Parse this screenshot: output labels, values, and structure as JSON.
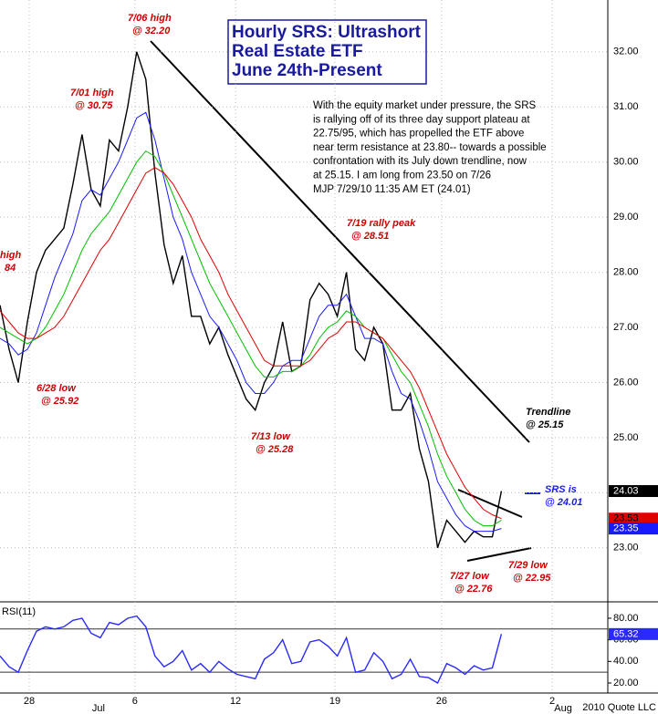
{
  "chart_data": [
    {
      "type": "line",
      "title": [
        "Hourly SRS: Ultrashort",
        "Real Estate ETF",
        "June 24th-Present"
      ],
      "commentary": [
        "With the equity market under pressure, the SRS",
        "is rallying off of its three day support plateau at",
        "22.75/95, which has propelled the ETF above",
        "near term resistance at 23.80-- towards a possible",
        "confrontation with its July down trendline, now",
        "at 25.15. I am long from 23.50 on 7/26",
        "MJP  7/29/10   11:35 AM ET (24.01)"
      ],
      "x": [
        0,
        3,
        6,
        9,
        12,
        15,
        18,
        21,
        24,
        27,
        30,
        33,
        36,
        39,
        42,
        45,
        48,
        51,
        54,
        57,
        60,
        63,
        66,
        69,
        72,
        75,
        78,
        81,
        84,
        87,
        90,
        93,
        96,
        99,
        102,
        105,
        108,
        111,
        114,
        117,
        120,
        123,
        126,
        129,
        132,
        135,
        138,
        141,
        144,
        147,
        150,
        153,
        156,
        159,
        162,
        165
      ],
      "xlim": [
        0,
        200
      ],
      "xticks": [
        {
          "value": 9.6,
          "label": "28"
        },
        {
          "value": 44.4,
          "label": "6"
        },
        {
          "value": 77.5,
          "label": "12"
        },
        {
          "value": 110.2,
          "label": "19"
        },
        {
          "value": 145.3,
          "label": "26"
        },
        {
          "value": 181.7,
          "label": "2"
        }
      ],
      "month_ticks": [
        {
          "value": 32.4,
          "label": "Jul"
        },
        {
          "value": 185.3,
          "label": "Aug"
        }
      ],
      "ylim": [
        22.02,
        32.94
      ],
      "yticks": [
        {
          "value": 23,
          "label": "23.00"
        },
        {
          "value": 24,
          "label": "24.00"
        },
        {
          "value": 25,
          "label": "25.00"
        },
        {
          "value": 26,
          "label": "26.00"
        },
        {
          "value": 27,
          "label": "27.00"
        },
        {
          "value": 28,
          "label": "28.00"
        },
        {
          "value": 29,
          "label": "29.00"
        },
        {
          "value": 30,
          "label": "30.00"
        },
        {
          "value": 31,
          "label": "31.00"
        },
        {
          "value": 32,
          "label": "32.00"
        }
      ],
      "grid": true,
      "series": [
        {
          "color": "#000000",
          "values": [
            27.4,
            26.6,
            26.0,
            27.1,
            28.0,
            28.4,
            28.6,
            28.8,
            29.6,
            30.5,
            29.5,
            29.2,
            30.4,
            30.2,
            31.0,
            32.0,
            31.5,
            29.8,
            28.5,
            27.8,
            28.3,
            27.2,
            27.2,
            26.7,
            27.0,
            26.5,
            26.1,
            25.7,
            25.5,
            26.0,
            26.3,
            27.1,
            26.2,
            26.3,
            27.5,
            27.8,
            27.6,
            27.2,
            28.0,
            26.6,
            26.4,
            27.0,
            26.7,
            25.5,
            25.5,
            25.8,
            24.8,
            24.2,
            23.0,
            23.5,
            23.3,
            23.1,
            23.3,
            23.2,
            23.2,
            24.03
          ]
        },
        {
          "color": "#1a1aff",
          "values": [
            26.8,
            26.7,
            26.5,
            26.6,
            26.9,
            27.4,
            27.9,
            28.3,
            28.7,
            29.3,
            29.5,
            29.4,
            29.7,
            30.0,
            30.4,
            30.8,
            30.9,
            30.4,
            29.7,
            29.0,
            28.6,
            28.0,
            27.6,
            27.2,
            27.0,
            26.7,
            26.4,
            26.0,
            25.8,
            25.8,
            26.0,
            26.3,
            26.4,
            26.4,
            26.8,
            27.2,
            27.4,
            27.4,
            27.6,
            27.2,
            26.8,
            26.8,
            26.7,
            26.2,
            25.8,
            25.7,
            25.3,
            24.8,
            24.2,
            23.9,
            23.6,
            23.4,
            23.3,
            23.3,
            23.3,
            23.35
          ]
        },
        {
          "color": "#00c000",
          "values": [
            27.0,
            26.9,
            26.8,
            26.7,
            26.8,
            27.0,
            27.3,
            27.6,
            28.0,
            28.4,
            28.7,
            28.9,
            29.1,
            29.4,
            29.7,
            30.0,
            30.2,
            30.1,
            29.8,
            29.4,
            29.0,
            28.6,
            28.2,
            27.8,
            27.5,
            27.2,
            26.9,
            26.6,
            26.3,
            26.1,
            26.1,
            26.2,
            26.2,
            26.3,
            26.5,
            26.8,
            27.0,
            27.1,
            27.3,
            27.2,
            27.0,
            26.9,
            26.8,
            26.5,
            26.2,
            26.0,
            25.6,
            25.2,
            24.7,
            24.3,
            24.0,
            23.7,
            23.5,
            23.4,
            23.4,
            23.5
          ]
        },
        {
          "color": "#e00000",
          "values": [
            27.3,
            27.1,
            26.9,
            26.8,
            26.8,
            26.9,
            27.0,
            27.2,
            27.5,
            27.8,
            28.1,
            28.4,
            28.6,
            28.9,
            29.2,
            29.5,
            29.8,
            29.9,
            29.8,
            29.6,
            29.3,
            29.0,
            28.6,
            28.3,
            28.0,
            27.6,
            27.3,
            27.0,
            26.7,
            26.4,
            26.3,
            26.3,
            26.3,
            26.3,
            26.4,
            26.6,
            26.8,
            26.9,
            27.1,
            27.1,
            27.0,
            26.9,
            26.8,
            26.6,
            26.4,
            26.2,
            25.9,
            25.5,
            25.1,
            24.7,
            24.4,
            24.1,
            23.9,
            23.7,
            23.6,
            23.53
          ]
        }
      ],
      "annotations": [
        {
          "color": "#cc0000",
          "lines": [
            "7/06  high",
            "@ 32.20"
          ]
        },
        {
          "color": "#cc0000",
          "lines": [
            "7/01 high",
            "@ 30.75"
          ]
        },
        {
          "color": "#cc0000",
          "lines": [
            "high",
            "84"
          ]
        },
        {
          "color": "#cc0000",
          "lines": [
            "6/28 low",
            "@ 25.92"
          ]
        },
        {
          "color": "#cc0000",
          "lines": [
            "7/13 low",
            "@ 25.28"
          ]
        },
        {
          "color": "#cc0000",
          "lines": [
            "7/19 rally peak",
            "@ 28.51"
          ]
        },
        {
          "color": "#cc0000",
          "lines": [
            "7/27 low",
            "@ 22.76"
          ]
        },
        {
          "color": "#cc0000",
          "lines": [
            "7/29 low",
            "@ 22.95"
          ]
        },
        {
          "color": "#000000",
          "lines": [
            "Trendline",
            "@ 25.15"
          ]
        },
        {
          "color": "#1a1aff",
          "lines": [
            "SRS is",
            "@ 24.01"
          ]
        }
      ],
      "footer": "2010 Quote LLC"
    },
    {
      "type": "line",
      "label": "RSI(11)",
      "ylim": [
        10.7,
        91.8
      ],
      "yticks": [
        {
          "value": 20,
          "label": "20.00"
        },
        {
          "value": 40,
          "label": "40.00"
        },
        {
          "value": 60,
          "label": "60.00"
        },
        {
          "value": 80,
          "label": "80.00"
        }
      ],
      "levels": [
        30,
        70
      ],
      "series": [
        {
          "color": "#2a2aff",
          "values": [
            45,
            35,
            30,
            50,
            68,
            72,
            70,
            72,
            78,
            80,
            66,
            62,
            76,
            74,
            80,
            82,
            72,
            45,
            35,
            40,
            50,
            32,
            38,
            30,
            40,
            33,
            28,
            26,
            24,
            42,
            48,
            60,
            38,
            40,
            58,
            60,
            54,
            45,
            62,
            30,
            32,
            48,
            40,
            24,
            28,
            42,
            26,
            25,
            20,
            38,
            34,
            28,
            36,
            32,
            34,
            65.32
          ]
        }
      ]
    }
  ]
}
